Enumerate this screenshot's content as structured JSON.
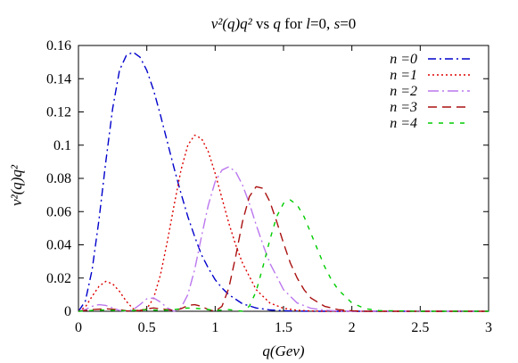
{
  "chart_data": {
    "type": "line",
    "title": "v²(q)q² vs q for l=0, s=0",
    "title_parts": {
      "expr": "v²(q)q²",
      "vs": " vs ",
      "q": "q",
      "for": " for ",
      "l": "l",
      "l_val": "=0, ",
      "s": "s",
      "s_val": "=0"
    },
    "xlabel": "q(Gev)",
    "ylabel": "v²(q)q²",
    "xlim": [
      0,
      3
    ],
    "ylim": [
      0,
      0.16
    ],
    "xticks": [
      0,
      0.5,
      1,
      1.5,
      2,
      2.5,
      3
    ],
    "xtick_labels": [
      "0",
      "0.5",
      "1",
      "1.5",
      "2",
      "2.5",
      "3"
    ],
    "yticks": [
      0,
      0.02,
      0.04,
      0.06,
      0.08,
      0.1,
      0.12,
      0.14,
      0.16
    ],
    "ytick_labels": [
      "0",
      "0.02",
      "0.04",
      "0.06",
      "0.08",
      "0.1",
      "0.12",
      "0.14",
      "0.16"
    ],
    "grid": false,
    "legend_position": "top-right",
    "series": [
      {
        "name": "n =0",
        "color": "#0000cc",
        "dash": "dash-dot",
        "x": [
          0,
          0.05,
          0.1,
          0.15,
          0.2,
          0.25,
          0.3,
          0.35,
          0.4,
          0.45,
          0.5,
          0.55,
          0.6,
          0.65,
          0.7,
          0.75,
          0.8,
          0.85,
          0.9,
          0.95,
          1.0,
          1.05,
          1.1,
          1.2,
          1.3,
          1.4,
          1.5,
          1.6,
          1.7,
          1.8,
          2.0,
          2.5,
          3.0
        ],
        "y": [
          0,
          0.006,
          0.025,
          0.055,
          0.09,
          0.122,
          0.145,
          0.154,
          0.156,
          0.153,
          0.145,
          0.133,
          0.118,
          0.102,
          0.086,
          0.071,
          0.057,
          0.045,
          0.034,
          0.026,
          0.019,
          0.014,
          0.01,
          0.0045,
          0.002,
          0.0008,
          0.0003,
          0.0001,
          0,
          0,
          0,
          0,
          0
        ]
      },
      {
        "name": "n =1",
        "color": "#dd0000",
        "dash": "dotted",
        "x": [
          0,
          0.05,
          0.1,
          0.15,
          0.2,
          0.25,
          0.3,
          0.35,
          0.4,
          0.45,
          0.5,
          0.55,
          0.6,
          0.65,
          0.7,
          0.75,
          0.8,
          0.85,
          0.9,
          0.95,
          1.0,
          1.05,
          1.1,
          1.15,
          1.2,
          1.3,
          1.4,
          1.5,
          1.6,
          1.7,
          1.8,
          2.0,
          2.5,
          3.0
        ],
        "y": [
          0,
          0.0025,
          0.009,
          0.015,
          0.018,
          0.0165,
          0.012,
          0.006,
          0.0015,
          0,
          0.0015,
          0.008,
          0.022,
          0.042,
          0.064,
          0.085,
          0.1,
          0.106,
          0.104,
          0.096,
          0.083,
          0.068,
          0.053,
          0.04,
          0.029,
          0.013,
          0.005,
          0.0018,
          0.0006,
          0.0002,
          0,
          0,
          0,
          0
        ]
      },
      {
        "name": "n =2",
        "color": "#bb77ee",
        "dash": "dash-dot-long",
        "x": [
          0,
          0.05,
          0.1,
          0.15,
          0.2,
          0.25,
          0.3,
          0.35,
          0.4,
          0.45,
          0.5,
          0.55,
          0.6,
          0.65,
          0.7,
          0.75,
          0.8,
          0.85,
          0.9,
          0.95,
          1.0,
          1.05,
          1.1,
          1.15,
          1.2,
          1.25,
          1.3,
          1.35,
          1.4,
          1.5,
          1.6,
          1.7,
          1.8,
          1.9,
          2.0,
          2.5,
          3.0
        ],
        "y": [
          0,
          0.001,
          0.003,
          0.004,
          0.0035,
          0.002,
          0.0005,
          0,
          0.001,
          0.004,
          0.0075,
          0.008,
          0.0055,
          0.002,
          0,
          0.002,
          0.01,
          0.025,
          0.045,
          0.064,
          0.078,
          0.085,
          0.087,
          0.084,
          0.076,
          0.065,
          0.052,
          0.04,
          0.029,
          0.013,
          0.005,
          0.0018,
          0.0006,
          0.0002,
          0,
          0,
          0
        ]
      },
      {
        "name": "n =3",
        "color": "#aa1111",
        "dash": "dashed",
        "x": [
          0,
          0.1,
          0.2,
          0.3,
          0.35,
          0.4,
          0.45,
          0.5,
          0.55,
          0.6,
          0.7,
          0.75,
          0.8,
          0.85,
          0.9,
          0.95,
          1.0,
          1.05,
          1.1,
          1.15,
          1.2,
          1.25,
          1.3,
          1.35,
          1.4,
          1.45,
          1.5,
          1.55,
          1.6,
          1.65,
          1.7,
          1.8,
          1.9,
          2.0,
          2.1,
          2.5,
          3.0
        ],
        "y": [
          0,
          0.001,
          0.0015,
          0.001,
          0.0003,
          0,
          0.0005,
          0.0015,
          0.002,
          0.0015,
          0.0005,
          0.0015,
          0.0035,
          0.004,
          0.003,
          0.001,
          0,
          0.003,
          0.014,
          0.033,
          0.054,
          0.069,
          0.075,
          0.074,
          0.066,
          0.054,
          0.041,
          0.029,
          0.02,
          0.013,
          0.008,
          0.003,
          0.001,
          0.0003,
          0,
          0,
          0
        ]
      },
      {
        "name": "n =4",
        "color": "#00cc00",
        "dash": "dashed-short",
        "x": [
          0,
          0.1,
          0.2,
          0.3,
          0.4,
          0.5,
          0.6,
          0.7,
          0.8,
          0.9,
          1.0,
          1.1,
          1.15,
          1.2,
          1.25,
          1.3,
          1.35,
          1.4,
          1.45,
          1.5,
          1.55,
          1.6,
          1.65,
          1.7,
          1.75,
          1.8,
          1.85,
          1.9,
          2.0,
          2.1,
          2.2,
          2.5,
          3.0
        ],
        "y": [
          0,
          0.0005,
          0.0008,
          0.0003,
          0.0005,
          0.001,
          0.0005,
          0.001,
          0.002,
          0.0015,
          0.0005,
          0.001,
          0.0005,
          0,
          0.003,
          0.012,
          0.027,
          0.043,
          0.057,
          0.065,
          0.067,
          0.064,
          0.057,
          0.047,
          0.037,
          0.027,
          0.019,
          0.013,
          0.005,
          0.0015,
          0.0004,
          0,
          0
        ]
      }
    ]
  }
}
